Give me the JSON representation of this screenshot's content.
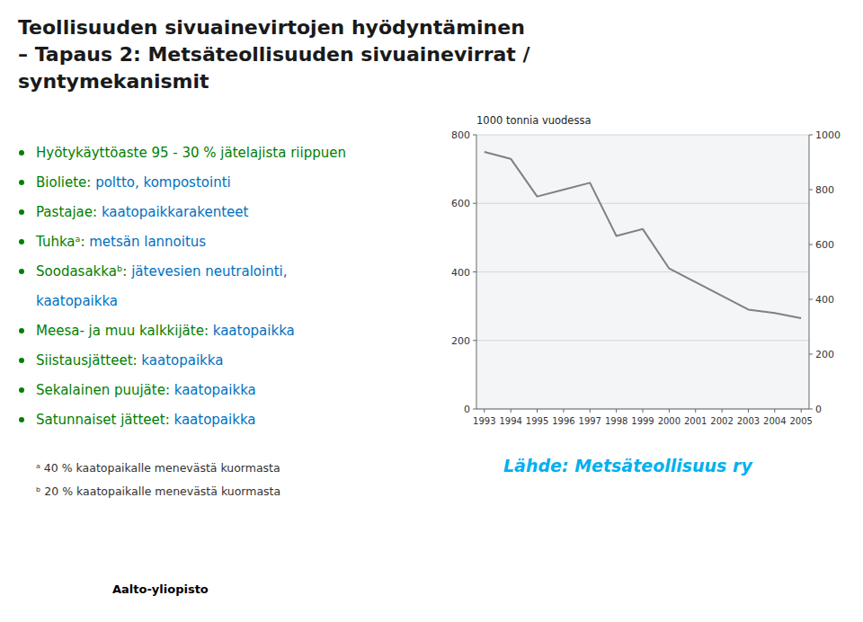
{
  "chart_data": {
    "type": "line",
    "title": "Teollisuuden sivuainevirtojen hyödyntäminen",
    "subtitle": "– Tapaus 2: Metsäteollisuuden sivuainevirrat /\nsyntymekanismit",
    "ylabel": "1000 tonnia vuodessa",
    "x": [
      1993,
      1994,
      1995,
      1996,
      1997,
      1998,
      1999,
      2000,
      2001,
      2002,
      2003,
      2004,
      2005
    ],
    "values": [
      750,
      730,
      620,
      640,
      660,
      505,
      525,
      410,
      370,
      330,
      290,
      280,
      265
    ],
    "color": "#808080",
    "xlim": [
      1992.7,
      2005.3
    ],
    "xticks": [
      1993,
      1994,
      1995,
      1996,
      1997,
      1998,
      1999,
      2000,
      2001,
      2002,
      2003,
      2004,
      2005
    ],
    "ylim": [
      0,
      800
    ],
    "yticks": [
      0,
      200,
      400,
      600,
      800
    ],
    "y2lim": [
      0,
      1000
    ],
    "y2ticks": [
      0,
      200,
      400,
      600,
      800,
      1000
    ],
    "grid": true,
    "annotations": [
      [
        {
          "text": "Hyötykäyttöaste 95 - 30 % jätelajista riippuen",
          "color": "#008000"
        }
      ],
      [
        {
          "text": "Bioliete: ",
          "color": "#008000"
        },
        {
          "text": "poltto, kompostointi",
          "color": "#0070C0"
        }
      ],
      [
        {
          "text": "Pastajae: ",
          "color": "#008000"
        },
        {
          "text": "kaatopaikkarakenteet",
          "color": "#0070C0"
        }
      ],
      [
        {
          "text": "Tuhkaᵃ: ",
          "color": "#008000"
        },
        {
          "text": "metsän lannoitus",
          "color": "#0070C0"
        }
      ],
      [
        {
          "text": "Soodasakkaᵇ: ",
          "color": "#008000"
        },
        {
          "text": "jätevesien neutralointi,\nkaatopaikka",
          "color": "#0070C0"
        }
      ],
      [
        {
          "text": "Meesa- ja muu kalkkijäte: ",
          "color": "#008000"
        },
        {
          "text": "kaatopaikka",
          "color": "#0070C0"
        }
      ],
      [
        {
          "text": "Siistausjätteet: ",
          "color": "#008000"
        },
        {
          "text": "kaatopaikka",
          "color": "#0070C0"
        }
      ],
      [
        {
          "text": "Sekalainen puujäte: ",
          "color": "#008000"
        },
        {
          "text": "kaatopaikka",
          "color": "#0070C0"
        }
      ],
      [
        {
          "text": "Satunnaiset jätteet: ",
          "color": "#008000"
        },
        {
          "text": "kaatopaikka",
          "color": "#0070C0"
        }
      ]
    ],
    "footnotes": [
      "ᵃ 40 % kaatopaikalle menevästä kuormasta",
      "ᵇ 20 % kaatopaikalle menevästä kuormasta"
    ],
    "source": {
      "text": "Lähde: Metsäteollisuus ry",
      "color": "#00B0F0"
    },
    "footer": "Aalto-yliopisto"
  }
}
